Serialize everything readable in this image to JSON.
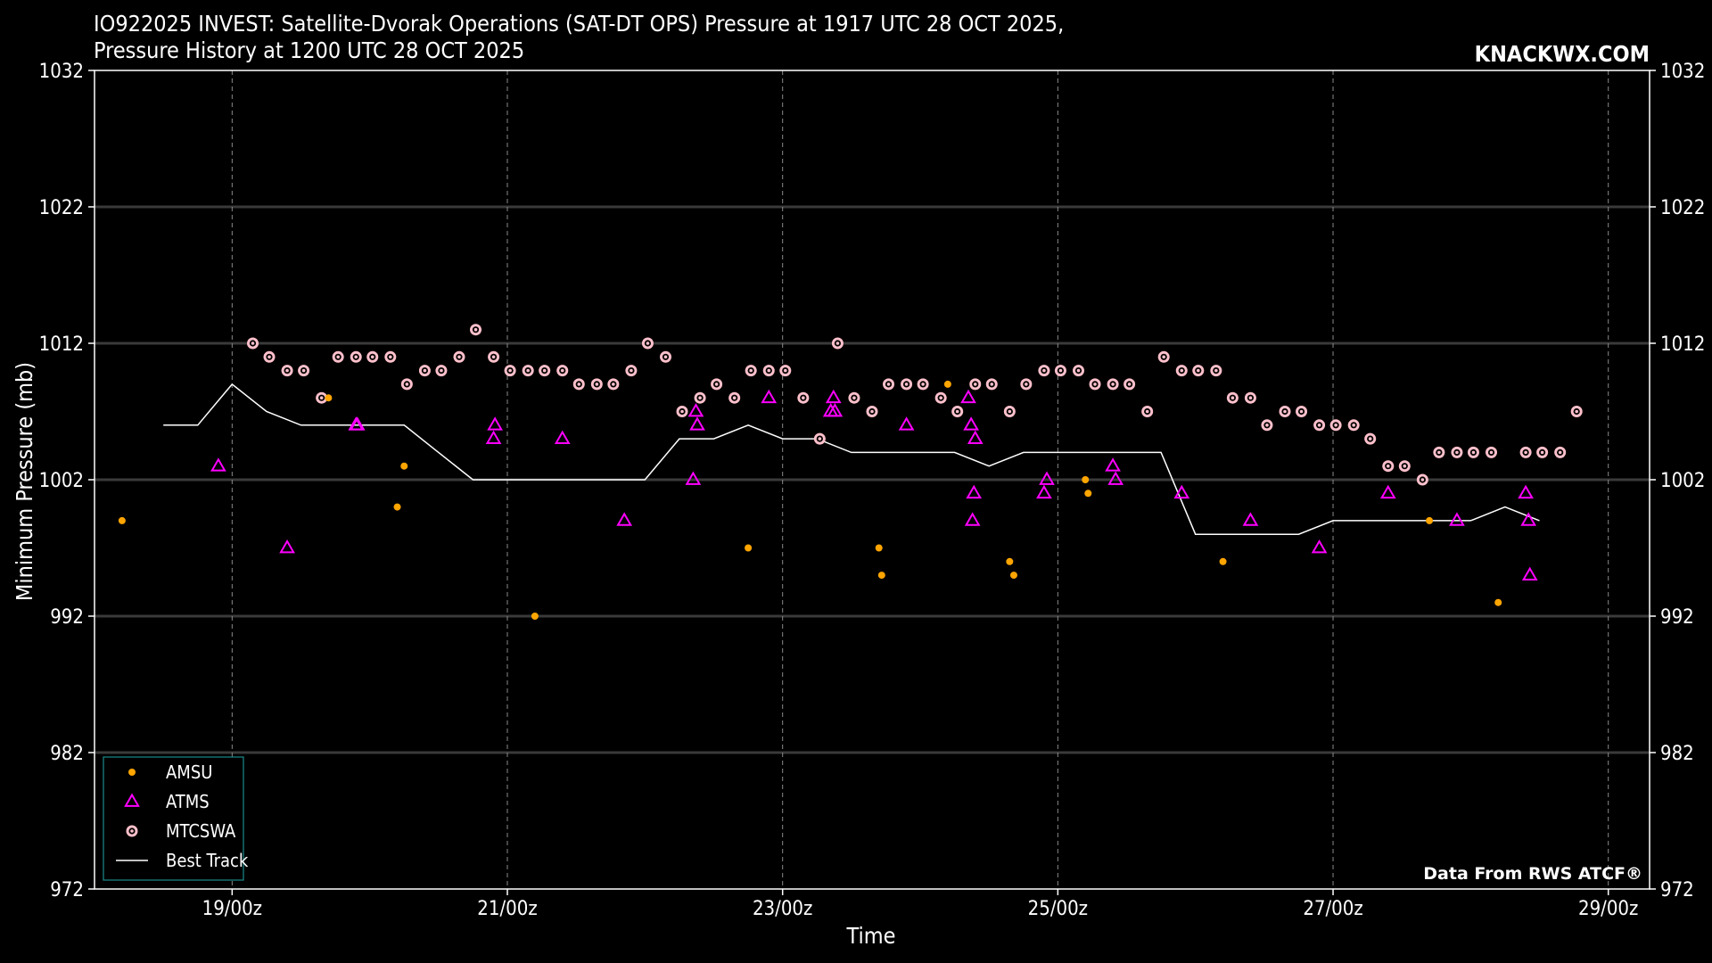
{
  "header": {
    "title_line1": "IO922025 INVEST: Satellite-Dvorak Operations (SAT-DT OPS) Pressure at 1917 UTC 28 OCT 2025,",
    "title_line2": "Pressure History at 1200 UTC 28 OCT 2025",
    "brand": "KNACKWX.COM"
  },
  "footer_note": "Data From RWS ATCF®",
  "colors": {
    "amsu": "#ffa500",
    "atms": "#ff00ff",
    "mtcswa": "#ffc0cb",
    "best_track": "#ffffff",
    "legend_border": "#1a8a8a"
  },
  "chart_data": {
    "type": "scatter",
    "xlabel": "Time",
    "ylabel": "Minimum Pressure (mb)",
    "x_unit": "days (day-of-month, fractional)",
    "xlim": [
      18.0,
      29.3
    ],
    "ylim": [
      972,
      1032
    ],
    "yticks": [
      972,
      982,
      992,
      1002,
      1012,
      1022,
      1032
    ],
    "xticks": [
      {
        "value": 19,
        "label": "19/00z"
      },
      {
        "value": 21,
        "label": "21/00z"
      },
      {
        "value": 23,
        "label": "23/00z"
      },
      {
        "value": 25,
        "label": "25/00z"
      },
      {
        "value": 27,
        "label": "27/00z"
      },
      {
        "value": 29,
        "label": "29/00z"
      }
    ],
    "grid": true,
    "legend_position": "lower-left",
    "series": [
      {
        "name": "AMSU",
        "marker": "dot",
        "points": [
          [
            19.7,
            1008
          ],
          [
            20.2,
            1000
          ],
          [
            20.25,
            1003
          ],
          [
            18.2,
            999
          ],
          [
            21.2,
            992
          ],
          [
            22.75,
            997
          ],
          [
            23.7,
            997
          ],
          [
            23.72,
            995
          ],
          [
            24.2,
            1009
          ],
          [
            24.65,
            996
          ],
          [
            24.68,
            995
          ],
          [
            25.2,
            1002
          ],
          [
            25.22,
            1001
          ],
          [
            26.2,
            996
          ],
          [
            27.7,
            999
          ],
          [
            28.2,
            993
          ]
        ]
      },
      {
        "name": "ATMS",
        "marker": "triangle",
        "points": [
          [
            18.9,
            1003
          ],
          [
            19.4,
            997
          ],
          [
            19.9,
            1006
          ],
          [
            19.91,
            1006
          ],
          [
            20.9,
            1005
          ],
          [
            20.91,
            1006
          ],
          [
            21.4,
            1005
          ],
          [
            21.85,
            999
          ],
          [
            22.35,
            1002
          ],
          [
            22.37,
            1007
          ],
          [
            22.38,
            1006
          ],
          [
            22.9,
            1008
          ],
          [
            23.35,
            1007
          ],
          [
            23.37,
            1008
          ],
          [
            23.38,
            1007
          ],
          [
            23.9,
            1006
          ],
          [
            24.35,
            1008
          ],
          [
            24.37,
            1006
          ],
          [
            24.38,
            999
          ],
          [
            24.39,
            1001
          ],
          [
            24.4,
            1005
          ],
          [
            24.9,
            1001
          ],
          [
            24.92,
            1002
          ],
          [
            25.4,
            1003
          ],
          [
            25.42,
            1002
          ],
          [
            25.9,
            1001
          ],
          [
            26.4,
            999
          ],
          [
            26.9,
            997
          ],
          [
            27.4,
            1001
          ],
          [
            27.9,
            999
          ],
          [
            28.4,
            1001
          ],
          [
            28.42,
            999
          ],
          [
            28.43,
            995
          ]
        ]
      },
      {
        "name": "MTCSWA",
        "marker": "ring",
        "points": [
          [
            19.15,
            1012
          ],
          [
            19.27,
            1011
          ],
          [
            19.4,
            1010
          ],
          [
            19.52,
            1010
          ],
          [
            19.65,
            1008
          ],
          [
            19.77,
            1011
          ],
          [
            19.9,
            1011
          ],
          [
            20.02,
            1011
          ],
          [
            20.15,
            1011
          ],
          [
            20.27,
            1009
          ],
          [
            20.4,
            1010
          ],
          [
            20.52,
            1010
          ],
          [
            20.65,
            1011
          ],
          [
            20.77,
            1013
          ],
          [
            20.9,
            1011
          ],
          [
            21.02,
            1010
          ],
          [
            21.15,
            1010
          ],
          [
            21.27,
            1010
          ],
          [
            21.4,
            1010
          ],
          [
            21.52,
            1009
          ],
          [
            21.65,
            1009
          ],
          [
            21.77,
            1009
          ],
          [
            21.9,
            1010
          ],
          [
            22.02,
            1012
          ],
          [
            22.15,
            1011
          ],
          [
            22.27,
            1007
          ],
          [
            22.4,
            1008
          ],
          [
            22.52,
            1009
          ],
          [
            22.65,
            1008
          ],
          [
            22.77,
            1010
          ],
          [
            22.9,
            1010
          ],
          [
            23.02,
            1010
          ],
          [
            23.15,
            1008
          ],
          [
            23.27,
            1005
          ],
          [
            23.4,
            1012
          ],
          [
            23.52,
            1008
          ],
          [
            23.65,
            1007
          ],
          [
            23.77,
            1009
          ],
          [
            23.9,
            1009
          ],
          [
            24.02,
            1009
          ],
          [
            24.15,
            1008
          ],
          [
            24.27,
            1007
          ],
          [
            24.4,
            1009
          ],
          [
            24.52,
            1009
          ],
          [
            24.65,
            1007
          ],
          [
            24.77,
            1009
          ],
          [
            24.9,
            1010
          ],
          [
            25.02,
            1010
          ],
          [
            25.15,
            1010
          ],
          [
            25.27,
            1009
          ],
          [
            25.4,
            1009
          ],
          [
            25.52,
            1009
          ],
          [
            25.65,
            1007
          ],
          [
            25.77,
            1011
          ],
          [
            25.9,
            1010
          ],
          [
            26.02,
            1010
          ],
          [
            26.15,
            1010
          ],
          [
            26.27,
            1008
          ],
          [
            26.4,
            1008
          ],
          [
            26.52,
            1006
          ],
          [
            26.65,
            1007
          ],
          [
            26.77,
            1007
          ],
          [
            26.9,
            1006
          ],
          [
            27.02,
            1006
          ],
          [
            27.15,
            1006
          ],
          [
            27.27,
            1005
          ],
          [
            27.4,
            1003
          ],
          [
            27.52,
            1003
          ],
          [
            27.65,
            1002
          ],
          [
            27.77,
            1004
          ],
          [
            27.9,
            1004
          ],
          [
            28.02,
            1004
          ],
          [
            28.15,
            1004
          ],
          [
            28.4,
            1004
          ],
          [
            28.52,
            1004
          ],
          [
            28.65,
            1004
          ],
          [
            28.77,
            1007
          ]
        ]
      },
      {
        "name": "Best Track",
        "marker": "line",
        "points": [
          [
            18.5,
            1006
          ],
          [
            18.75,
            1006
          ],
          [
            19.0,
            1009
          ],
          [
            19.25,
            1007
          ],
          [
            19.5,
            1006
          ],
          [
            19.75,
            1006
          ],
          [
            20.0,
            1006
          ],
          [
            20.25,
            1006
          ],
          [
            20.5,
            1004
          ],
          [
            20.75,
            1002
          ],
          [
            21.0,
            1002
          ],
          [
            21.25,
            1002
          ],
          [
            21.5,
            1002
          ],
          [
            21.75,
            1002
          ],
          [
            22.0,
            1002
          ],
          [
            22.25,
            1005
          ],
          [
            22.5,
            1005
          ],
          [
            22.75,
            1006
          ],
          [
            23.0,
            1005
          ],
          [
            23.25,
            1005
          ],
          [
            23.5,
            1004
          ],
          [
            23.75,
            1004
          ],
          [
            24.0,
            1004
          ],
          [
            24.25,
            1004
          ],
          [
            24.5,
            1003
          ],
          [
            24.75,
            1004
          ],
          [
            25.0,
            1004
          ],
          [
            25.25,
            1004
          ],
          [
            25.5,
            1004
          ],
          [
            25.75,
            1004
          ],
          [
            26.0,
            998
          ],
          [
            26.25,
            998
          ],
          [
            26.5,
            998
          ],
          [
            26.75,
            998
          ],
          [
            27.0,
            999
          ],
          [
            27.25,
            999
          ],
          [
            27.5,
            999
          ],
          [
            27.75,
            999
          ],
          [
            28.0,
            999
          ],
          [
            28.25,
            1000
          ],
          [
            28.5,
            999
          ]
        ]
      }
    ]
  }
}
